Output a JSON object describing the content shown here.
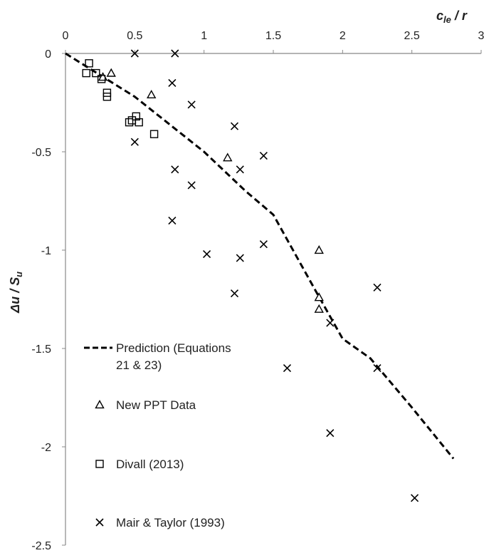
{
  "chart_data": {
    "type": "scatter",
    "xlabel": "c_le / r",
    "xlabel_main": "c",
    "xlabel_sub": "le",
    "xlabel_tail": " / r",
    "ylabel": "Δu / S_u",
    "ylabel_main": "Δu / S",
    "ylabel_sub": "u",
    "xlim": [
      0,
      3
    ],
    "ylim": [
      -2.5,
      0
    ],
    "x_ticks": [
      0,
      0.5,
      1,
      1.5,
      2,
      2.5,
      3
    ],
    "x_tick_labels": [
      "0",
      "0.5",
      "1",
      "1.5",
      "2",
      "2.5",
      "3"
    ],
    "y_ticks": [
      0,
      -0.5,
      -1,
      -1.5,
      -2,
      -2.5
    ],
    "y_tick_labels": [
      "0",
      "-0.5",
      "-1",
      "-1.5",
      "-2",
      "-2.5"
    ],
    "x_axis_position": "top",
    "grid": false,
    "legend_position": "left-bottom inside",
    "series": [
      {
        "name": "Prediction (Equations 21 & 23)",
        "legend_lines": [
          "Prediction (Equations",
          "21 & 23)"
        ],
        "kind": "line",
        "style": "dashed",
        "color": "#000000",
        "points": [
          [
            0,
            0
          ],
          [
            0.5,
            -0.22
          ],
          [
            1.0,
            -0.5
          ],
          [
            1.3,
            -0.7
          ],
          [
            1.5,
            -0.82
          ],
          [
            1.8,
            -1.2
          ],
          [
            2.0,
            -1.45
          ],
          [
            2.2,
            -1.55
          ],
          [
            2.5,
            -1.8
          ],
          [
            2.8,
            -2.06
          ]
        ]
      },
      {
        "name": "New PPT Data",
        "kind": "scatter",
        "marker": "triangle",
        "color": "#000000",
        "points": [
          [
            0.27,
            -0.12
          ],
          [
            0.33,
            -0.1
          ],
          [
            0.62,
            -0.21
          ],
          [
            1.17,
            -0.53
          ],
          [
            1.83,
            -1.0
          ],
          [
            1.83,
            -1.24
          ],
          [
            1.83,
            -1.3
          ]
        ]
      },
      {
        "name": "Divall (2013)",
        "kind": "scatter",
        "marker": "square",
        "color": "#000000",
        "points": [
          [
            0.17,
            -0.05
          ],
          [
            0.15,
            -0.1
          ],
          [
            0.22,
            -0.1
          ],
          [
            0.26,
            -0.13
          ],
          [
            0.3,
            -0.2
          ],
          [
            0.3,
            -0.22
          ],
          [
            0.46,
            -0.35
          ],
          [
            0.48,
            -0.34
          ],
          [
            0.51,
            -0.32
          ],
          [
            0.53,
            -0.35
          ],
          [
            0.64,
            -0.41
          ]
        ]
      },
      {
        "name": "Mair & Taylor (1993)",
        "kind": "scatter",
        "marker": "x",
        "color": "#000000",
        "points": [
          [
            0.5,
            0.0
          ],
          [
            0.79,
            0.0
          ],
          [
            0.77,
            -0.15
          ],
          [
            0.91,
            -0.26
          ],
          [
            1.22,
            -0.37
          ],
          [
            0.5,
            -0.45
          ],
          [
            1.43,
            -0.52
          ],
          [
            0.79,
            -0.59
          ],
          [
            1.26,
            -0.59
          ],
          [
            0.91,
            -0.67
          ],
          [
            0.77,
            -0.85
          ],
          [
            1.43,
            -0.97
          ],
          [
            1.02,
            -1.02
          ],
          [
            1.26,
            -1.04
          ],
          [
            2.25,
            -1.19
          ],
          [
            1.22,
            -1.22
          ],
          [
            1.91,
            -1.37
          ],
          [
            1.6,
            -1.6
          ],
          [
            2.25,
            -1.6
          ],
          [
            1.91,
            -1.93
          ],
          [
            2.52,
            -2.26
          ]
        ]
      }
    ]
  }
}
